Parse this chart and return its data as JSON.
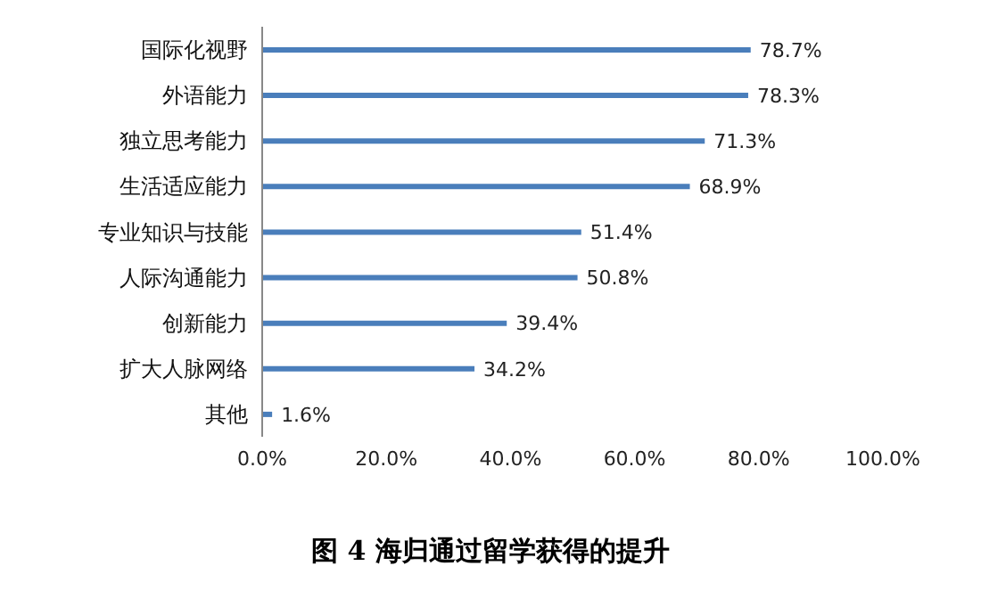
{
  "chart_data": {
    "type": "bar",
    "orientation": "horizontal",
    "title": "图 4 海归通过留学获得的提升",
    "categories": [
      "国际化视野",
      "外语能力",
      "独立思考能力",
      "生活适应能力",
      "专业知识与技能",
      "人际沟通能力",
      "创新能力",
      "扩大人脉网络",
      "其他"
    ],
    "values": [
      78.7,
      78.3,
      71.3,
      68.9,
      51.4,
      50.8,
      39.4,
      34.2,
      1.6
    ],
    "value_labels": [
      "78.7%",
      "78.3%",
      "71.3%",
      "68.9%",
      "51.4%",
      "50.8%",
      "39.4%",
      "34.2%",
      "1.6%"
    ],
    "color": "#4a7ebb",
    "xlim": [
      0,
      100
    ],
    "xticks": [
      {
        "value": 0,
        "label": "0.0%"
      },
      {
        "value": 20,
        "label": "20.0%"
      },
      {
        "value": 40,
        "label": "40.0%"
      },
      {
        "value": 60,
        "label": "60.0%"
      },
      {
        "value": 80,
        "label": "80.0%"
      },
      {
        "value": 100,
        "label": "100.0%"
      }
    ],
    "grid": false,
    "legend": false
  }
}
